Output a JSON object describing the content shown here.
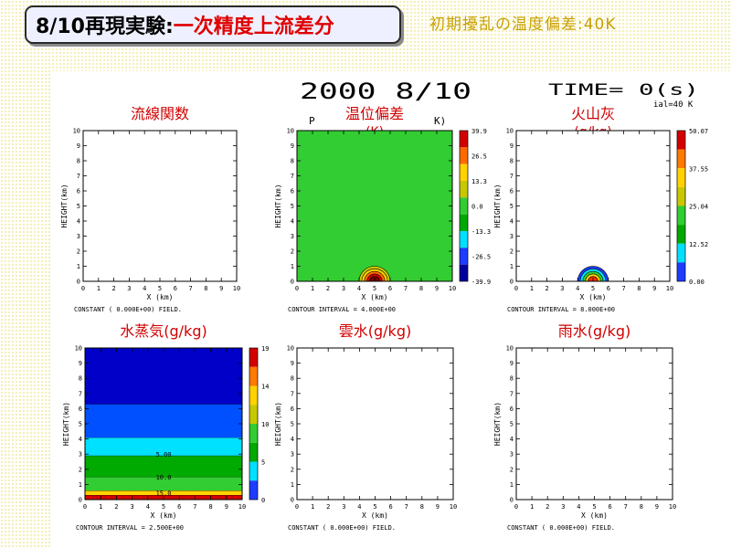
{
  "slide": {
    "title_main": "8/10再現実験:",
    "title_sub": "一次精度上流差分",
    "subtitle": "初期擾乱の温度偏差:40K"
  },
  "figure": {
    "date": "2000 8/10",
    "time": "TIME=  0(s)",
    "header_p": "P",
    "header_k": "K)",
    "topright_note": "ial=40 K"
  },
  "chart_data": [
    {
      "type": "heatmap",
      "title": "流線関数",
      "xlabel": "X  (km)",
      "ylabel": "HEIGHT(km)",
      "xlim": [
        0,
        10
      ],
      "ylim": [
        0,
        10
      ],
      "x_ticks": [
        "0",
        "1",
        "2",
        "3",
        "4",
        "5",
        "6",
        "7",
        "8",
        "9",
        "10"
      ],
      "y_ticks": [
        "0",
        "1",
        "2",
        "3",
        "4",
        "5",
        "6",
        "7",
        "8",
        "9",
        "10"
      ],
      "footer": "CONSTANT ( 0.000E+00) FIELD.",
      "constant_field": 0,
      "colorbar": null
    },
    {
      "type": "heatmap",
      "title": "温位偏差",
      "unit": "(K)",
      "xlabel": "X  (km)",
      "ylabel": "HEIGHT(km)",
      "xlim": [
        0,
        10
      ],
      "ylim": [
        0,
        10
      ],
      "x_ticks": [
        "0",
        "1",
        "2",
        "3",
        "4",
        "5",
        "6",
        "7",
        "8",
        "9",
        "10"
      ],
      "y_ticks": [
        "0",
        "1",
        "2",
        "3",
        "4",
        "5",
        "6",
        "7",
        "8",
        "9",
        "10"
      ],
      "footer": "CONTOUR INTERVAL = 4.000E+00",
      "background_value": 0,
      "anomaly": {
        "x_center_km": 5.0,
        "half_width_km": 1.0,
        "top_km": 1.0,
        "max_value": 39.9
      },
      "colorbar": {
        "labels": [
          "39.9",
          "26.5",
          "13.3",
          "0.0",
          "-13.3",
          "-26.5",
          "-39.9"
        ],
        "colors": [
          "#d40000",
          "#ff6a00",
          "#ffd200",
          "#c8c800",
          "#32cd32",
          "#00aa00",
          "#00e0ff",
          "#1e3cff",
          "#0000a0"
        ]
      }
    },
    {
      "type": "heatmap",
      "title": "火山灰",
      "unit": "(g/kg)",
      "xlabel": "X  (km)",
      "ylabel": "HEIGHT(km)",
      "xlim": [
        0,
        10
      ],
      "ylim": [
        0,
        10
      ],
      "x_ticks": [
        "0",
        "1",
        "2",
        "3",
        "4",
        "5",
        "6",
        "7",
        "8",
        "9",
        "10"
      ],
      "y_ticks": [
        "0",
        "1",
        "2",
        "3",
        "4",
        "5",
        "6",
        "7",
        "8",
        "9",
        "10"
      ],
      "footer": "CONTOUR INTERVAL = 8.000E+00",
      "background_value": 0,
      "anomaly": {
        "x_center_km": 5.0,
        "half_width_km": 1.0,
        "top_km": 1.0,
        "max_value": 50.07
      },
      "colorbar": {
        "labels": [
          "50.07",
          "37.55",
          "25.04",
          "12.52",
          "0.00"
        ],
        "colors": [
          "#d40000",
          "#ff7a00",
          "#ffd200",
          "#c8c800",
          "#32cd32",
          "#00aa00",
          "#00e0ff",
          "#1e3cff"
        ]
      }
    },
    {
      "type": "heatmap",
      "title": "水蒸気(g/kg)",
      "xlabel": "X  (km)",
      "ylabel": "HEIGHT(km)",
      "xlim": [
        0,
        10
      ],
      "ylim": [
        0,
        10
      ],
      "x_ticks": [
        "0",
        "1",
        "2",
        "3",
        "4",
        "5",
        "6",
        "7",
        "8",
        "9",
        "10"
      ],
      "y_ticks": [
        "0",
        "1",
        "2",
        "3",
        "4",
        "5",
        "6",
        "7",
        "8",
        "9",
        "10"
      ],
      "footer": "CONTOUR INTERVAL = 2.500E+00",
      "layers": [
        {
          "from_km": 0.0,
          "to_km": 0.3,
          "color": "#d40000"
        },
        {
          "from_km": 0.3,
          "to_km": 0.6,
          "color": "#ffd200"
        },
        {
          "from_km": 0.6,
          "to_km": 1.5,
          "color": "#32cd32"
        },
        {
          "from_km": 1.5,
          "to_km": 2.9,
          "color": "#00aa00"
        },
        {
          "from_km": 2.9,
          "to_km": 4.1,
          "color": "#00e0ff"
        },
        {
          "from_km": 4.1,
          "to_km": 6.3,
          "color": "#0050ff"
        },
        {
          "from_km": 6.3,
          "to_km": 10.0,
          "color": "#0000c8"
        }
      ],
      "contour_labels": [
        {
          "text": "15.0",
          "x_km": 5.0,
          "y_km": 0.45
        },
        {
          "text": "10.0",
          "x_km": 5.0,
          "y_km": 1.5
        },
        {
          "text": "5.00",
          "x_km": 5.0,
          "y_km": 3.0
        }
      ],
      "colorbar": {
        "labels": [
          "19",
          "14",
          "10",
          "5",
          "0"
        ],
        "colors": [
          "#d40000",
          "#ff7a00",
          "#ffd200",
          "#c8c800",
          "#32cd32",
          "#00aa00",
          "#00e0ff",
          "#1e3cff"
        ]
      }
    },
    {
      "type": "heatmap",
      "title": "雲水(g/kg)",
      "xlabel": "X  (km)",
      "ylabel": "HEIGHT(km)",
      "xlim": [
        0,
        10
      ],
      "ylim": [
        0,
        10
      ],
      "x_ticks": [
        "0",
        "1",
        "2",
        "3",
        "4",
        "5",
        "6",
        "7",
        "8",
        "9",
        "10"
      ],
      "y_ticks": [
        "0",
        "1",
        "2",
        "3",
        "4",
        "5",
        "6",
        "7",
        "8",
        "9",
        "10"
      ],
      "footer": "CONSTANT ( 0.000E+00) FIELD.",
      "constant_field": 0,
      "colorbar": null
    },
    {
      "type": "heatmap",
      "title": "雨水(g/kg)",
      "xlabel": "X  (km)",
      "ylabel": "HEIGHT(km)",
      "xlim": [
        0,
        10
      ],
      "ylim": [
        0,
        10
      ],
      "x_ticks": [
        "0",
        "1",
        "2",
        "3",
        "4",
        "5",
        "6",
        "7",
        "8",
        "9",
        "10"
      ],
      "y_ticks": [
        "0",
        "1",
        "2",
        "3",
        "4",
        "5",
        "6",
        "7",
        "8",
        "9",
        "10"
      ],
      "footer": "CONSTANT ( 0.000E+00) FIELD.",
      "constant_field": 0,
      "colorbar": null
    }
  ]
}
